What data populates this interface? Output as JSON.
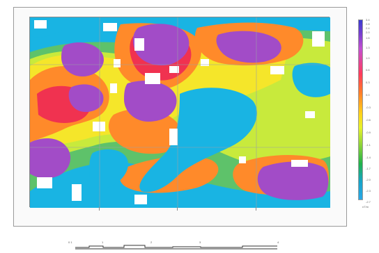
{
  "map": {
    "colors": {
      "magenta": "#a24cc7",
      "red": "#f03250",
      "orange": "#ff8a2a",
      "yellow": "#f5e62a",
      "lime": "#c8ea3c",
      "green": "#5ec26a",
      "cyan": "#19b4e3",
      "white": "#ffffff",
      "grid": "#9aa0a6"
    }
  },
  "legend": {
    "labels": [
      "3.4",
      "2.8",
      "2.4",
      "2.0",
      "1.6",
      "1.3",
      "1.0",
      "0.6",
      "0.3",
      "0.0",
      "-0.3",
      "-0.6",
      "-0.9",
      "-1.1",
      "-1.4",
      "-1.7",
      "-2.0",
      "-2.3",
      "-2.7"
    ],
    "unit": "nT/m"
  },
  "scale": {
    "labels": [
      "0 1",
      "1",
      "2",
      "3",
      "4"
    ]
  }
}
